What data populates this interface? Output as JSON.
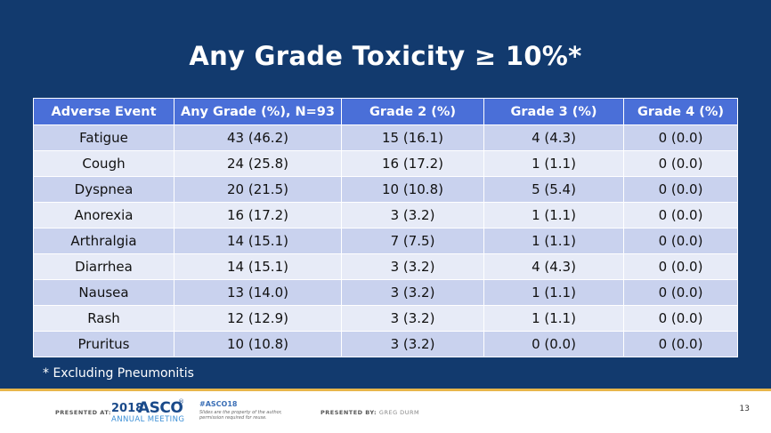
{
  "slide": {
    "title": "Any Grade Toxicity ≥ 10%*",
    "footnote": "* Excluding Pneumonitis"
  },
  "table": {
    "headers": [
      "Adverse Event",
      "Any Grade (%), N=93",
      "Grade 2 (%)",
      "Grade 3 (%)",
      "Grade 4 (%)"
    ],
    "rows": [
      [
        "Fatigue",
        "43 (46.2)",
        "15 (16.1)",
        "4 (4.3)",
        "0 (0.0)"
      ],
      [
        "Cough",
        "24 (25.8)",
        "16 (17.2)",
        "1 (1.1)",
        "0 (0.0)"
      ],
      [
        "Dyspnea",
        "20 (21.5)",
        "10 (10.8)",
        "5 (5.4)",
        "0 (0.0)"
      ],
      [
        "Anorexia",
        "16 (17.2)",
        "3 (3.2)",
        "1 (1.1)",
        "0 (0.0)"
      ],
      [
        "Arthralgia",
        "14 (15.1)",
        "7 (7.5)",
        "1 (1.1)",
        "0 (0.0)"
      ],
      [
        "Diarrhea",
        "14 (15.1)",
        "3 (3.2)",
        "4 (4.3)",
        "0 (0.0)"
      ],
      [
        "Nausea",
        "13 (14.0)",
        "3 (3.2)",
        "1 (1.1)",
        "0 (0.0)"
      ],
      [
        "Rash",
        "12 (12.9)",
        "3 (3.2)",
        "1 (1.1)",
        "0 (0.0)"
      ],
      [
        "Pruritus",
        "10 (10.8)",
        "3 (3.2)",
        "0 (0.0)",
        "0 (0.0)"
      ]
    ]
  },
  "footer": {
    "presented_at": "PRESENTED AT:",
    "asco_year": "2018",
    "asco_name": "ASCO",
    "asco_mark": "®",
    "asco_meeting": "ANNUAL MEETING",
    "hashtag": "#ASCO18",
    "disclaimer": "Slides are the property of the author, permission required for reuse.",
    "presented_by_label": "PRESENTED BY:",
    "presenter": "GREG DURM",
    "page_number": "13"
  },
  "colors": {
    "background": "#123a6e",
    "header_row": "#4a6fd8",
    "row_odd": "#c9d2ee",
    "row_even": "#e7ebf7",
    "accent_line": "#e8b64a"
  }
}
